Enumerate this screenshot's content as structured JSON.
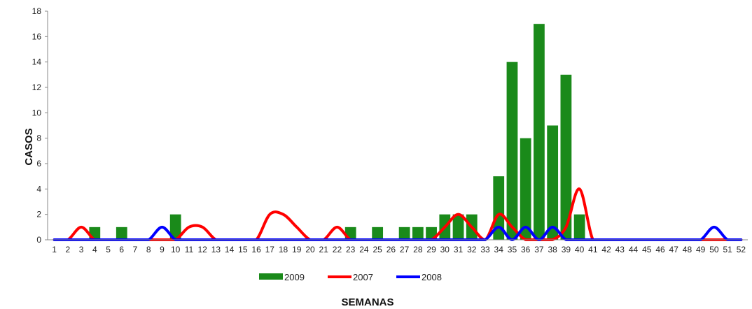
{
  "chart_data": {
    "type": "bar",
    "xlabel": "SEMANAS",
    "ylabel": "CASOS",
    "ylim": [
      0,
      18
    ],
    "yticks": [
      "0",
      "2",
      "4",
      "6",
      "8",
      "10",
      "12",
      "14",
      "16",
      "18"
    ],
    "categories": [
      "1",
      "2",
      "3",
      "4",
      "5",
      "6",
      "7",
      "8",
      "9",
      "10",
      "11",
      "12",
      "13",
      "14",
      "15",
      "16",
      "17",
      "18",
      "19",
      "20",
      "21",
      "22",
      "23",
      "24",
      "25",
      "26",
      "27",
      "28",
      "29",
      "30",
      "31",
      "32",
      "33",
      "34",
      "35",
      "36",
      "37",
      "38",
      "39",
      "40",
      "41",
      "42",
      "43",
      "44",
      "45",
      "46",
      "47",
      "48",
      "49",
      "50",
      "51",
      "52"
    ],
    "grid": false,
    "legend_position": "bottom",
    "series": [
      {
        "name": "2009",
        "kind": "bar",
        "color": "#1a8a1a",
        "values": [
          0,
          0,
          0,
          1,
          0,
          1,
          0,
          0,
          0,
          2,
          0,
          0,
          0,
          0,
          0,
          0,
          0,
          0,
          0,
          0,
          0,
          0,
          1,
          0,
          1,
          0,
          1,
          1,
          1,
          2,
          2,
          2,
          0,
          5,
          14,
          8,
          17,
          9,
          13,
          2,
          0,
          0,
          0,
          0,
          0,
          0,
          0,
          0,
          0,
          0,
          0,
          0
        ]
      },
      {
        "name": "2007",
        "kind": "line",
        "color": "#ff0000",
        "values": [
          0,
          0,
          1,
          0,
          0,
          0,
          0,
          0,
          0,
          0,
          1,
          1,
          0,
          0,
          0,
          0,
          2,
          2,
          1,
          0,
          0,
          1,
          0,
          0,
          0,
          0,
          0,
          0,
          0,
          1,
          2,
          1,
          0,
          2,
          1,
          0,
          0,
          0,
          1,
          4,
          0,
          0,
          0,
          0,
          0,
          0,
          0,
          0,
          0,
          0,
          0,
          0
        ]
      },
      {
        "name": "2008",
        "kind": "line",
        "color": "#0000ff",
        "values": [
          0,
          0,
          0,
          0,
          0,
          0,
          0,
          0,
          1,
          0,
          0,
          0,
          0,
          0,
          0,
          0,
          0,
          0,
          0,
          0,
          0,
          0,
          0,
          0,
          0,
          0,
          0,
          0,
          0,
          0,
          0,
          0,
          0,
          1,
          0,
          1,
          0,
          1,
          0,
          0,
          0,
          0,
          0,
          0,
          0,
          0,
          0,
          0,
          0,
          1,
          0,
          0
        ]
      }
    ]
  }
}
